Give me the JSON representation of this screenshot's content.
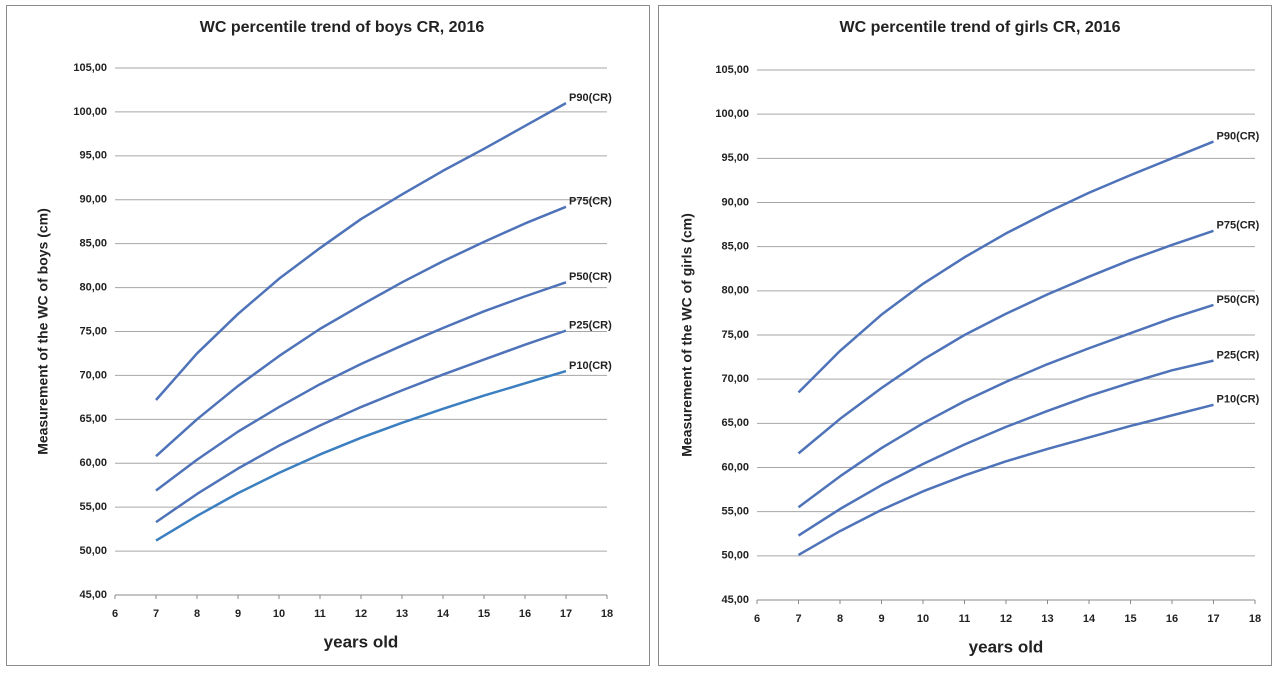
{
  "chart_data": [
    {
      "type": "line",
      "title": "WC percentile trend of boys CR, 2016",
      "x_label": "years old",
      "y_label": "Measurement of the WC of boys (cm)",
      "x": [
        7,
        8,
        9,
        10,
        11,
        12,
        13,
        14,
        15,
        16,
        17
      ],
      "xlim": [
        6,
        18
      ],
      "xticks": [
        6,
        7,
        8,
        9,
        10,
        11,
        12,
        13,
        14,
        15,
        16,
        17,
        18
      ],
      "ylim": [
        45,
        105
      ],
      "yticks": [
        {
          "value": 45,
          "label": "45,00"
        },
        {
          "value": 50,
          "label": "50,00"
        },
        {
          "value": 55,
          "label": "55,00"
        },
        {
          "value": 60,
          "label": "60,00"
        },
        {
          "value": 65,
          "label": "65,00"
        },
        {
          "value": 70,
          "label": "70,00"
        },
        {
          "value": 75,
          "label": "75,00"
        },
        {
          "value": 80,
          "label": "80,00"
        },
        {
          "value": 85,
          "label": "85,00"
        },
        {
          "value": 90,
          "label": "90,00"
        },
        {
          "value": 95,
          "label": "95,00"
        },
        {
          "value": 100,
          "label": "100,00"
        },
        {
          "value": 105,
          "label": "105,00"
        }
      ],
      "grid": true,
      "series": [
        {
          "name": "P90(CR)",
          "color": "#4f73b9",
          "values": [
            67.2,
            72.5,
            77,
            81,
            84.5,
            87.8,
            90.6,
            93.3,
            95.8,
            98.4,
            101
          ]
        },
        {
          "name": "P75(CR)",
          "color": "#4f73b9",
          "values": [
            60.8,
            65,
            68.8,
            72.2,
            75.3,
            78,
            80.6,
            83,
            85.2,
            87.3,
            89.2
          ]
        },
        {
          "name": "P50(CR)",
          "color": "#4f73b9",
          "values": [
            56.9,
            60.4,
            63.6,
            66.4,
            69,
            71.3,
            73.4,
            75.4,
            77.3,
            79,
            80.6
          ]
        },
        {
          "name": "P25(CR)",
          "color": "#4f73b9",
          "values": [
            53.3,
            56.5,
            59.4,
            62,
            64.3,
            66.4,
            68.3,
            70.1,
            71.8,
            73.5,
            75.1
          ]
        },
        {
          "name": "P10(CR)",
          "color": "#3b7fc1",
          "values": [
            51.2,
            54,
            56.6,
            58.9,
            61,
            62.9,
            64.6,
            66.2,
            67.7,
            69.1,
            70.5
          ]
        }
      ]
    },
    {
      "type": "line",
      "title": "WC percentile trend of girls CR, 2016",
      "x_label": "years old",
      "y_label": "Measurement of the WC of girls (cm)",
      "x": [
        7,
        8,
        9,
        10,
        11,
        12,
        13,
        14,
        15,
        16,
        17
      ],
      "xlim": [
        6,
        18
      ],
      "xticks": [
        6,
        7,
        8,
        9,
        10,
        11,
        12,
        13,
        14,
        15,
        16,
        17,
        18
      ],
      "ylim": [
        45,
        105
      ],
      "yticks": [
        {
          "value": 45,
          "label": "45,00"
        },
        {
          "value": 50,
          "label": "50,00"
        },
        {
          "value": 55,
          "label": "55,00"
        },
        {
          "value": 60,
          "label": "60,00"
        },
        {
          "value": 65,
          "label": "65,00"
        },
        {
          "value": 70,
          "label": "70,00"
        },
        {
          "value": 75,
          "label": "75,00"
        },
        {
          "value": 80,
          "label": "80,00"
        },
        {
          "value": 85,
          "label": "85,00"
        },
        {
          "value": 90,
          "label": "90,00"
        },
        {
          "value": 95,
          "label": "95,00"
        },
        {
          "value": 100,
          "label": "100,00"
        },
        {
          "value": 105,
          "label": "105,00"
        }
      ],
      "grid": true,
      "series": [
        {
          "name": "P90(CR)",
          "color": "#4f73b9",
          "values": [
            68.5,
            73.2,
            77.3,
            80.8,
            83.8,
            86.5,
            88.9,
            91.1,
            93.1,
            95,
            96.9
          ]
        },
        {
          "name": "P75(CR)",
          "color": "#4f73b9",
          "values": [
            61.6,
            65.5,
            69,
            72.2,
            75,
            77.4,
            79.6,
            81.6,
            83.5,
            85.2,
            86.8
          ]
        },
        {
          "name": "P50(CR)",
          "color": "#4f73b9",
          "values": [
            55.5,
            59,
            62.2,
            65,
            67.5,
            69.7,
            71.7,
            73.5,
            75.2,
            76.9,
            78.4
          ]
        },
        {
          "name": "P25(CR)",
          "color": "#4f73b9",
          "values": [
            52.3,
            55.3,
            58,
            60.4,
            62.6,
            64.6,
            66.4,
            68.1,
            69.6,
            71,
            72.1
          ]
        },
        {
          "name": "P10(CR)",
          "color": "#4f73b9",
          "values": [
            50.1,
            52.8,
            55.2,
            57.3,
            59.1,
            60.7,
            62.1,
            63.4,
            64.7,
            65.9,
            67.1
          ]
        }
      ]
    }
  ]
}
